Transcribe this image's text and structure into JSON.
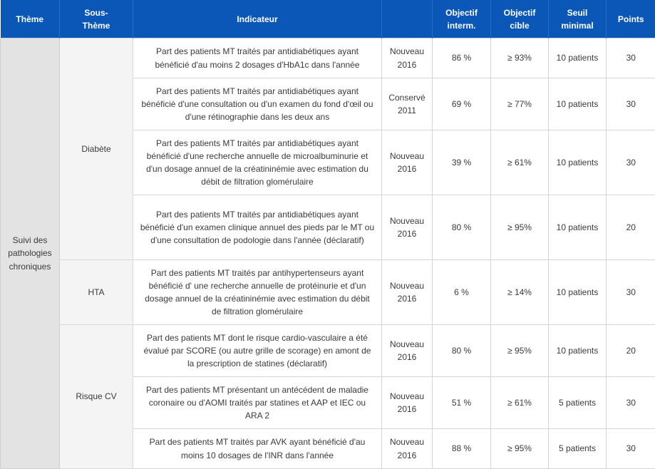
{
  "headers": {
    "theme": "Thème",
    "subtheme_l1": "Sous-",
    "subtheme_l2": "Thème",
    "indicator": "Indicateur",
    "obj_interm_l1": "Objectif",
    "obj_interm_l2": "interm.",
    "obj_cible_l1": "Objectif",
    "obj_cible_l2": "cible",
    "seuil_l1": "Seuil",
    "seuil_l2": "minimal",
    "points": "Points"
  },
  "theme": {
    "line1": "Suivi des",
    "line2": "pathologies",
    "line3": "chroniques"
  },
  "subthemes": {
    "diabete": "Diabète",
    "hta": "HTA",
    "risque_cv": "Risque CV"
  },
  "rows": [
    {
      "indicator": "Part des patients MT traités par antidiabétiques ayant bénéficié d'au moins 2 dosages d'HbA1c dans l'année",
      "status_l1": "Nouveau",
      "status_l2": "2016",
      "obj_interm": "86 %",
      "obj_cible": "≥ 93%",
      "seuil": "10 patients",
      "points": "30"
    },
    {
      "indicator": "Part des patients MT traités par antidiabétiques ayant bénéficié d'une consultation ou d'un examen du fond d'œil ou d'une rétinographie dans les deux ans",
      "status_l1": "Conservé",
      "status_l2": "2011",
      "obj_interm": "69 %",
      "obj_cible": "≥ 77%",
      "seuil": "10 patients",
      "points": "30"
    },
    {
      "indicator": "Part des patients MT traités par antidiabétiques ayant bénéficié d'une recherche annuelle de microalbuminurie et d'un dosage annuel de la créatininémie avec estimation du débit de filtration glomérulaire",
      "status_l1": "Nouveau",
      "status_l2": "2016",
      "obj_interm": "39 %",
      "obj_cible": "≥ 61%",
      "seuil": "10 patients",
      "points": "30"
    },
    {
      "indicator": "Part des patients MT traités par antidiabétiques ayant bénéficié d'un examen clinique annuel des pieds par le MT ou d'une consultation de podologie dans l'année (déclaratif)",
      "status_l1": "Nouveau",
      "status_l2": "2016",
      "obj_interm": "80 %",
      "obj_cible": "≥ 95%",
      "seuil": "10 patients",
      "points": "20"
    },
    {
      "indicator": "Part des patients MT traités par antihypertenseurs ayant bénéficié d' une recherche annuelle de protéinurie et d'un dosage annuel de la créatininémie avec estimation du débit de filtration glomérulaire",
      "status_l1": "Nouveau",
      "status_l2": "2016",
      "obj_interm": "6 %",
      "obj_cible": "≥ 14%",
      "seuil": "10 patients",
      "points": "30"
    },
    {
      "indicator": "Part des patients MT dont le risque cardio-vasculaire a été évalué par SCORE (ou autre grille de scorage) en amont de la prescription de statines (déclaratif)",
      "status_l1": "Nouveau",
      "status_l2": "2016",
      "obj_interm": "80 %",
      "obj_cible": "≥ 95%",
      "seuil": "10 patients",
      "points": "20"
    },
    {
      "indicator": "Part des patients MT présentant un antécédent de maladie coronaire ou d'AOMI traités par statines et AAP et IEC ou ARA 2",
      "status_l1": "Nouveau",
      "status_l2": "2016",
      "obj_interm": "51 %",
      "obj_cible": "≥ 61%",
      "seuil": "5 patients",
      "points": "30"
    },
    {
      "indicator": "Part des patients MT traités par AVK ayant bénéficié d'au moins 10 dosages de l'INR dans l'année",
      "status_l1": "Nouveau",
      "status_l2": "2016",
      "obj_interm": "88 %",
      "obj_cible": "≥ 95%",
      "seuil": "5 patients",
      "points": "30"
    }
  ]
}
